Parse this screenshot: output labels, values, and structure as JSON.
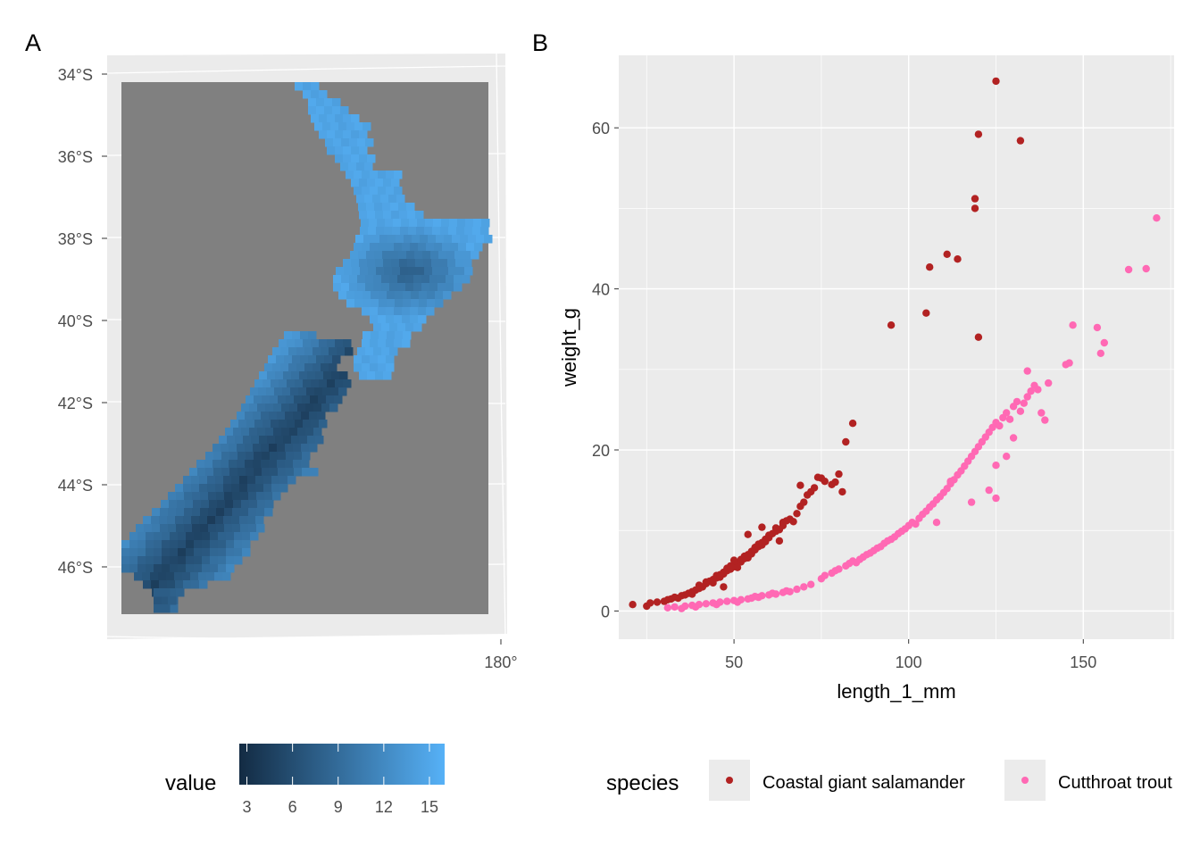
{
  "chart_data": [
    {
      "panel_tag": "A",
      "type": "heatmap",
      "title": "",
      "xlabel": "",
      "ylabel": "",
      "projection": "map",
      "lat_ticks": [
        "34°S",
        "36°S",
        "38°S",
        "40°S",
        "42°S",
        "44°S",
        "46°S"
      ],
      "lon_ticks": [
        "180°"
      ],
      "extent": {
        "lon": [
          166.0,
          179.0
        ],
        "lat": [
          -47.1,
          -34.2
        ]
      },
      "background_color": "#808080",
      "panel_color": "#ebebeb",
      "grid": true,
      "legend": {
        "title": "value",
        "position": "bottom",
        "type": "colorbar",
        "range": [
          2.5,
          16
        ],
        "ticks": [
          3,
          6,
          9,
          12,
          15
        ],
        "ticks_label": [
          "3",
          "6",
          "9",
          "12",
          "15"
        ],
        "colors": [
          "#132b43",
          "#56b1f7"
        ]
      },
      "description_values": {
        "coast_value": 15,
        "highland_north_value": 8,
        "alps_value": 4
      }
    },
    {
      "panel_tag": "B",
      "type": "scatter",
      "title": "",
      "xlabel": "length_1_mm",
      "ylabel": "weight_g",
      "xlim": [
        17,
        176
      ],
      "ylim": [
        -3.5,
        69
      ],
      "x_ticks": [
        50,
        100,
        150
      ],
      "y_ticks": [
        0,
        20,
        40,
        60
      ],
      "grid": true,
      "legend": {
        "title": "species",
        "position": "bottom"
      },
      "series": [
        {
          "name": "Coastal giant salamander",
          "color": "#b22222",
          "points": [
            [
              21,
              0.8
            ],
            [
              25,
              0.6
            ],
            [
              26,
              1.0
            ],
            [
              28,
              1.1
            ],
            [
              30,
              1.2
            ],
            [
              31,
              1.4
            ],
            [
              32,
              1.5
            ],
            [
              33,
              1.7
            ],
            [
              34,
              1.6
            ],
            [
              35,
              1.9
            ],
            [
              36,
              2.0
            ],
            [
              37,
              2.2
            ],
            [
              38,
              2.4
            ],
            [
              38,
              2.1
            ],
            [
              39,
              2.6
            ],
            [
              40,
              2.8
            ],
            [
              40,
              3.2
            ],
            [
              41,
              3.0
            ],
            [
              42,
              3.4
            ],
            [
              42,
              3.6
            ],
            [
              43,
              3.7
            ],
            [
              44,
              3.9
            ],
            [
              44,
              3.5
            ],
            [
              45,
              4.1
            ],
            [
              45,
              4.4
            ],
            [
              46,
              4.5
            ],
            [
              46,
              4.2
            ],
            [
              47,
              4.8
            ],
            [
              47,
              4.6
            ],
            [
              48,
              5.0
            ],
            [
              48,
              5.3
            ],
            [
              49,
              5.2
            ],
            [
              49,
              5.6
            ],
            [
              50,
              5.5
            ],
            [
              50,
              6.3
            ],
            [
              51,
              5.9
            ],
            [
              51,
              5.4
            ],
            [
              52,
              6.1
            ],
            [
              52,
              6.4
            ],
            [
              53,
              6.5
            ],
            [
              53,
              6.8
            ],
            [
              54,
              7.0
            ],
            [
              54,
              6.6
            ],
            [
              55,
              7.4
            ],
            [
              55,
              7.1
            ],
            [
              56,
              7.6
            ],
            [
              56,
              7.9
            ],
            [
              57,
              8.0
            ],
            [
              57,
              8.3
            ],
            [
              58,
              8.5
            ],
            [
              58,
              8.2
            ],
            [
              59,
              8.9
            ],
            [
              59,
              8.6
            ],
            [
              60,
              9.1
            ],
            [
              60,
              9.4
            ],
            [
              61,
              9.6
            ],
            [
              62,
              9.9
            ],
            [
              62,
              10.3
            ],
            [
              63,
              10.1
            ],
            [
              64,
              10.6
            ],
            [
              64,
              11.0
            ],
            [
              65,
              11.2
            ],
            [
              66,
              11.4
            ],
            [
              67,
              11.1
            ],
            [
              68,
              12.1
            ],
            [
              69,
              13.0
            ],
            [
              70,
              13.5
            ],
            [
              71,
              14.4
            ],
            [
              72,
              14.8
            ],
            [
              73,
              15.3
            ],
            [
              75,
              16.5
            ],
            [
              76,
              16.1
            ],
            [
              78,
              15.7
            ],
            [
              79,
              16.0
            ],
            [
              80,
              17.0
            ],
            [
              81,
              14.8
            ],
            [
              82,
              21.0
            ],
            [
              84,
              23.3
            ],
            [
              54,
              9.5
            ],
            [
              58,
              10.4
            ],
            [
              63,
              8.7
            ],
            [
              47,
              3.0
            ],
            [
              69,
              15.6
            ],
            [
              74,
              16.6
            ],
            [
              95,
              35.5
            ],
            [
              105,
              37.0
            ],
            [
              106,
              42.7
            ],
            [
              111,
              44.3
            ],
            [
              114,
              43.7
            ],
            [
              119,
              50.0
            ],
            [
              119,
              51.2
            ],
            [
              120,
              34.0
            ],
            [
              120,
              59.2
            ],
            [
              125,
              65.8
            ],
            [
              132,
              58.4
            ]
          ]
        },
        {
          "name": "Cutthroat trout",
          "color": "#ff69b4",
          "points": [
            [
              31,
              0.4
            ],
            [
              33,
              0.5
            ],
            [
              35,
              0.3
            ],
            [
              36,
              0.6
            ],
            [
              38,
              0.7
            ],
            [
              39,
              0.5
            ],
            [
              40,
              0.8
            ],
            [
              42,
              0.9
            ],
            [
              44,
              1.0
            ],
            [
              45,
              0.8
            ],
            [
              46,
              1.1
            ],
            [
              48,
              1.2
            ],
            [
              50,
              1.3
            ],
            [
              51,
              1.1
            ],
            [
              52,
              1.4
            ],
            [
              54,
              1.5
            ],
            [
              55,
              1.6
            ],
            [
              56,
              1.8
            ],
            [
              57,
              1.7
            ],
            [
              58,
              1.9
            ],
            [
              60,
              2.0
            ],
            [
              61,
              2.2
            ],
            [
              62,
              2.1
            ],
            [
              64,
              2.3
            ],
            [
              65,
              2.5
            ],
            [
              66,
              2.4
            ],
            [
              68,
              2.7
            ],
            [
              70,
              3.0
            ],
            [
              72,
              3.3
            ],
            [
              75,
              4.0
            ],
            [
              76,
              4.4
            ],
            [
              78,
              4.7
            ],
            [
              79,
              5.0
            ],
            [
              80,
              5.2
            ],
            [
              82,
              5.6
            ],
            [
              83,
              5.9
            ],
            [
              84,
              6.2
            ],
            [
              85,
              6.0
            ],
            [
              86,
              6.4
            ],
            [
              87,
              6.7
            ],
            [
              88,
              7.0
            ],
            [
              89,
              7.2
            ],
            [
              90,
              7.5
            ],
            [
              91,
              7.8
            ],
            [
              92,
              8.0
            ],
            [
              93,
              8.4
            ],
            [
              94,
              8.7
            ],
            [
              95,
              8.9
            ],
            [
              96,
              9.2
            ],
            [
              97,
              9.6
            ],
            [
              98,
              9.9
            ],
            [
              99,
              10.2
            ],
            [
              100,
              10.6
            ],
            [
              101,
              11.0
            ],
            [
              102,
              10.8
            ],
            [
              103,
              11.5
            ],
            [
              104,
              12.0
            ],
            [
              105,
              12.4
            ],
            [
              106,
              12.9
            ],
            [
              107,
              13.3
            ],
            [
              108,
              13.8
            ],
            [
              109,
              14.2
            ],
            [
              110,
              14.7
            ],
            [
              111,
              15.2
            ],
            [
              112,
              15.8
            ],
            [
              113,
              16.3
            ],
            [
              114,
              16.9
            ],
            [
              115,
              17.4
            ],
            [
              116,
              18.0
            ],
            [
              117,
              18.6
            ],
            [
              118,
              19.2
            ],
            [
              119,
              19.8
            ],
            [
              120,
              20.4
            ],
            [
              121,
              21.0
            ],
            [
              122,
              21.6
            ],
            [
              123,
              22.2
            ],
            [
              124,
              22.8
            ],
            [
              125,
              23.4
            ],
            [
              126,
              23.0
            ],
            [
              127,
              24.0
            ],
            [
              128,
              24.6
            ],
            [
              129,
              23.8
            ],
            [
              130,
              25.4
            ],
            [
              131,
              26.0
            ],
            [
              132,
              24.8
            ],
            [
              133,
              25.8
            ],
            [
              134,
              26.6
            ],
            [
              135,
              27.3
            ],
            [
              136,
              28.0
            ],
            [
              137,
              27.5
            ],
            [
              138,
              24.6
            ],
            [
              139,
              23.7
            ],
            [
              140,
              28.3
            ],
            [
              145,
              30.6
            ],
            [
              146,
              30.8
            ],
            [
              147,
              35.5
            ],
            [
              154,
              35.2
            ],
            [
              155,
              32.0
            ],
            [
              156,
              33.3
            ],
            [
              163,
              42.4
            ],
            [
              168,
              42.5
            ],
            [
              171,
              48.8
            ],
            [
              125,
              14.0
            ],
            [
              118,
              13.5
            ],
            [
              108,
              11.0
            ],
            [
              112,
              16.1
            ],
            [
              123,
              15.0
            ],
            [
              128,
              19.2
            ],
            [
              130,
              21.5
            ],
            [
              134,
              29.8
            ],
            [
              125,
              18.1
            ]
          ]
        }
      ]
    }
  ]
}
